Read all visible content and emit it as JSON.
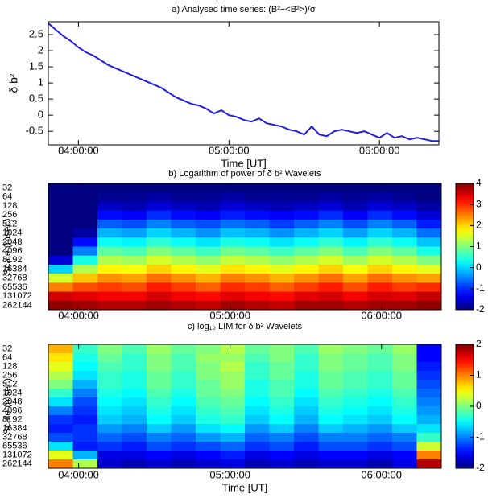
{
  "chart_data": [
    {
      "type": "line",
      "title": "a) Analysed time series: (B²−<B²>)/σ",
      "ylabel": "δ b²",
      "xlabel": "Time [UT]",
      "color": "#1f1fdc",
      "xlim": [
        228,
        383.7
      ],
      "xticks": [
        {
          "value": 240,
          "label": "04:00:00"
        },
        {
          "value": 300,
          "label": "05:00:00"
        },
        {
          "value": 360,
          "label": "06:00:00"
        }
      ],
      "ylim": [
        -0.92,
        2.9
      ],
      "yticks": [
        -0.5,
        0,
        0.5,
        1,
        1.5,
        2,
        2.5
      ],
      "x": [
        228,
        231,
        234,
        237,
        240,
        243,
        246,
        249,
        252,
        255,
        258,
        261,
        264,
        267,
        270,
        273,
        276,
        279,
        282,
        285,
        288,
        291,
        294,
        297,
        300,
        303,
        306,
        309,
        312,
        315,
        318,
        321,
        324,
        327,
        330,
        333,
        336,
        339,
        342,
        345,
        348,
        351,
        354,
        357,
        360,
        363,
        366,
        369,
        372,
        375,
        378,
        381,
        383.7
      ],
      "values": [
        2.85,
        2.65,
        2.45,
        2.3,
        2.1,
        1.95,
        1.85,
        1.7,
        1.55,
        1.45,
        1.35,
        1.25,
        1.15,
        1.05,
        0.95,
        0.85,
        0.7,
        0.55,
        0.45,
        0.35,
        0.3,
        0.2,
        0.05,
        0.15,
        0.0,
        -0.05,
        -0.15,
        -0.2,
        -0.1,
        -0.25,
        -0.3,
        -0.35,
        -0.45,
        -0.5,
        -0.6,
        -0.35,
        -0.6,
        -0.65,
        -0.5,
        -0.45,
        -0.5,
        -0.55,
        -0.5,
        -0.6,
        -0.7,
        -0.55,
        -0.7,
        -0.65,
        -0.75,
        -0.7,
        -0.75,
        -0.8,
        -0.8
      ]
    },
    {
      "type": "heatmap",
      "title": "b) Logarithm of  power of δ b² Wavelets",
      "ylabel": "Scale (msec)",
      "colormap": "jet",
      "xlim": [
        228,
        383.7
      ],
      "xticks": [
        {
          "value": 240,
          "label": "04:00:00"
        },
        {
          "value": 300,
          "label": "05:00:00"
        },
        {
          "value": 360,
          "label": "06:00:00"
        }
      ],
      "y_categories": [
        32,
        64,
        128,
        256,
        512,
        1024,
        2048,
        4096,
        8192,
        16384,
        32768,
        65536,
        131072,
        262144
      ],
      "zlim": [
        -2,
        4
      ],
      "zticks": [
        -2,
        -1,
        0,
        1,
        2,
        3,
        4
      ],
      "values": [
        [
          -2,
          -2,
          -2,
          -2,
          -2,
          -2,
          -2,
          -2,
          -2,
          -2,
          -2,
          -2,
          -2,
          -2,
          -2,
          -2
        ],
        [
          -2,
          -2,
          -1.9,
          -1.9,
          -1.8,
          -1.9,
          -1.9,
          -1.8,
          -1.9,
          -1.9,
          -1.9,
          -1.8,
          -1.9,
          -1.8,
          -1.9,
          -2
        ],
        [
          -2,
          -2,
          -1.6,
          -1.7,
          -1.5,
          -1.6,
          -1.7,
          -1.5,
          -1.6,
          -1.7,
          -1.6,
          -1.5,
          -1.7,
          -1.5,
          -1.6,
          -1.8
        ],
        [
          -2,
          -2,
          -1.2,
          -1.3,
          -1.0,
          -1.2,
          -1.3,
          -1.1,
          -1.2,
          -1.3,
          -1.2,
          -1.0,
          -1.3,
          -1.0,
          -1.2,
          -1.5
        ],
        [
          -2,
          -2,
          -0.7,
          -0.8,
          -0.5,
          -0.7,
          -0.8,
          -0.6,
          -0.7,
          -0.9,
          -0.7,
          -0.5,
          -0.8,
          -0.5,
          -0.7,
          -1.1
        ],
        [
          -2,
          -1.8,
          -0.2,
          -0.3,
          0,
          -0.2,
          -0.4,
          -0.1,
          -0.2,
          -0.4,
          -0.2,
          0,
          -0.3,
          0,
          -0.2,
          -0.6
        ],
        [
          -2,
          -1.2,
          0.3,
          0.2,
          0.5,
          0.3,
          0.1,
          0.4,
          0.3,
          0.1,
          0.3,
          0.5,
          0.2,
          0.5,
          0.3,
          -0.1
        ],
        [
          -2,
          -0.5,
          0.8,
          0.7,
          1.0,
          0.8,
          0.6,
          0.9,
          0.8,
          0.6,
          0.8,
          1.0,
          0.7,
          1.0,
          0.8,
          0.4
        ],
        [
          -1.5,
          0.4,
          1.3,
          1.2,
          1.5,
          1.3,
          1.1,
          1.4,
          1.3,
          1.1,
          1.3,
          1.5,
          1.2,
          1.5,
          1.3,
          1.0
        ],
        [
          0,
          1.3,
          1.8,
          1.7,
          2.0,
          1.8,
          1.6,
          1.9,
          1.8,
          1.6,
          1.8,
          2.0,
          1.7,
          2.0,
          1.8,
          1.6
        ],
        [
          1.5,
          2.1,
          2.4,
          2.3,
          2.6,
          2.4,
          2.2,
          2.5,
          2.4,
          2.2,
          2.4,
          2.6,
          2.3,
          2.6,
          2.4,
          2.3
        ],
        [
          2.5,
          2.8,
          2.9,
          2.8,
          3.1,
          2.9,
          2.7,
          3.0,
          2.9,
          2.7,
          2.9,
          3.1,
          2.8,
          3.1,
          2.9,
          3.0
        ],
        [
          3.5,
          3.4,
          3.3,
          3.3,
          3.5,
          3.3,
          3.2,
          3.4,
          3.3,
          3.2,
          3.4,
          3.5,
          3.3,
          3.5,
          3.4,
          3.6
        ],
        [
          3.9,
          3.8,
          3.7,
          3.7,
          3.8,
          3.7,
          3.6,
          3.8,
          3.7,
          3.6,
          3.8,
          3.8,
          3.7,
          3.8,
          3.8,
          3.9
        ]
      ]
    },
    {
      "type": "heatmap",
      "title": "c) log₁₀ LIM for δ b² Wavelets",
      "ylabel": "Scale (msec)",
      "xlabel": "Time [UT]",
      "colormap": "jet",
      "xlim": [
        228,
        383.7
      ],
      "xticks": [
        {
          "value": 240,
          "label": "04:00:00"
        },
        {
          "value": 300,
          "label": "05:00:00"
        },
        {
          "value": 360,
          "label": "06:00:00"
        }
      ],
      "y_categories": [
        32,
        64,
        128,
        256,
        512,
        1024,
        2048,
        4096,
        8192,
        16384,
        32768,
        65536,
        131072,
        262144
      ],
      "zlim": [
        -2,
        2
      ],
      "zticks": [
        -2,
        -1,
        0,
        1,
        2
      ],
      "values": [
        [
          0.8,
          -0.3,
          0,
          -0.2,
          0.1,
          -0.1,
          0,
          0.2,
          -0.1,
          0,
          -0.2,
          0.1,
          0,
          -0.1,
          0.1,
          -1.5
        ],
        [
          0.6,
          -0.4,
          -0.1,
          -0.3,
          0,
          -0.2,
          0.1,
          0.1,
          -0.2,
          0,
          -0.3,
          0,
          -0.1,
          -0.2,
          0,
          -1.5
        ],
        [
          0.4,
          -0.5,
          -0.2,
          -0.3,
          0,
          -0.2,
          0,
          0.2,
          -0.3,
          -0.1,
          -0.3,
          0,
          -0.1,
          -0.2,
          0,
          -1.4
        ],
        [
          0.2,
          -0.6,
          -0.3,
          -0.4,
          -0.1,
          -0.3,
          0,
          0.1,
          -0.3,
          -0.1,
          -0.4,
          -0.1,
          -0.2,
          -0.3,
          -0.1,
          -1.3
        ],
        [
          0,
          -0.8,
          -0.3,
          -0.4,
          -0.1,
          -0.3,
          -0.1,
          0.1,
          -0.4,
          -0.2,
          -0.4,
          -0.1,
          -0.2,
          -0.3,
          -0.1,
          -1.2
        ],
        [
          -0.3,
          -1.0,
          -0.4,
          -0.5,
          -0.2,
          -0.4,
          -0.1,
          0,
          -0.4,
          -0.2,
          -0.5,
          -0.2,
          -0.3,
          -0.4,
          -0.2,
          -1.1
        ],
        [
          -0.6,
          -1.2,
          -0.5,
          -0.6,
          -0.3,
          -0.5,
          -0.2,
          -0.1,
          -0.5,
          -0.3,
          -0.6,
          -0.3,
          -0.4,
          -0.5,
          -0.3,
          -1.0
        ],
        [
          -1.0,
          -1.3,
          -0.6,
          -0.7,
          -0.4,
          -0.6,
          -0.3,
          -0.2,
          -0.6,
          -0.4,
          -0.7,
          -0.4,
          -0.5,
          -0.6,
          -0.4,
          -0.9
        ],
        [
          -1.3,
          -1.4,
          -0.7,
          -0.8,
          -0.5,
          -0.7,
          -0.4,
          -0.3,
          -0.7,
          -0.5,
          -0.8,
          -0.5,
          -0.6,
          -0.7,
          -0.5,
          -0.8
        ],
        [
          -1.4,
          -1.3,
          -0.9,
          -1.0,
          -0.7,
          -0.9,
          -0.6,
          -0.5,
          -0.9,
          -0.7,
          -1.0,
          -0.7,
          -0.8,
          -0.9,
          -0.7,
          -0.6
        ],
        [
          -1.2,
          -1.3,
          -1.1,
          -1.2,
          -1.0,
          -1.1,
          -0.9,
          -0.8,
          -1.1,
          -1.0,
          -1.2,
          -1.0,
          -1.0,
          -1.1,
          -1.0,
          -0.3
        ],
        [
          -0.6,
          -1.4,
          -1.3,
          -1.4,
          -1.2,
          -1.3,
          -1.2,
          -1.1,
          -1.3,
          -1.2,
          -1.4,
          -1.2,
          -1.2,
          -1.3,
          -1.2,
          0.3
        ],
        [
          0.4,
          -0.8,
          -1.6,
          -1.6,
          -1.5,
          -1.6,
          -1.5,
          -1.4,
          -1.6,
          -1.5,
          -1.6,
          -1.5,
          -1.5,
          -1.6,
          -1.5,
          1.0
        ],
        [
          1.0,
          0.2,
          -1.7,
          -1.8,
          -1.7,
          -1.8,
          -1.7,
          -1.6,
          -1.8,
          -1.7,
          -1.8,
          -1.7,
          -1.7,
          -1.8,
          -1.6,
          1.8
        ]
      ]
    }
  ]
}
